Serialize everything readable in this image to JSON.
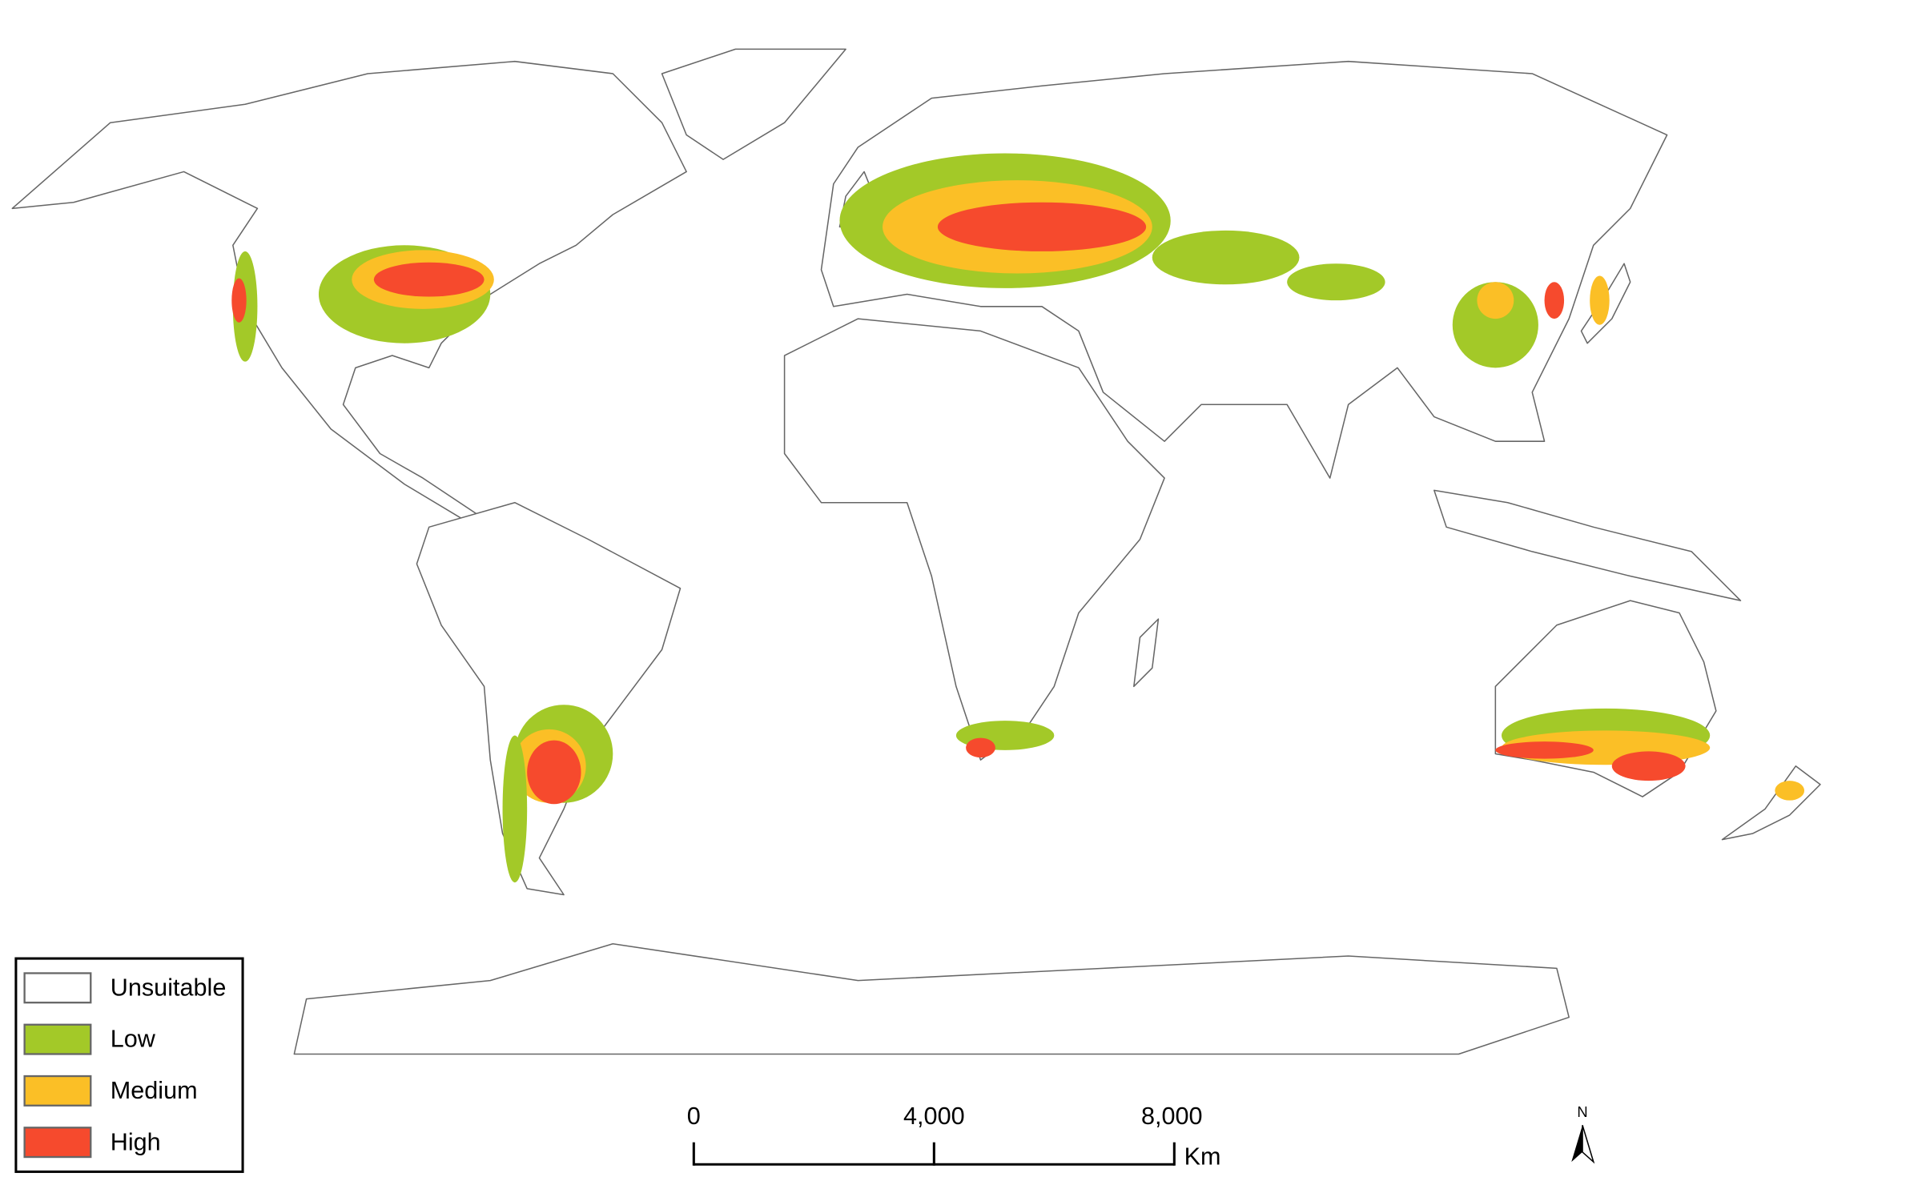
{
  "legend": {
    "items": [
      {
        "label": "Unsuitable",
        "color": "#ffffff"
      },
      {
        "label": "Low",
        "color": "#a3c928"
      },
      {
        "label": "Medium",
        "color": "#fbbf26"
      },
      {
        "label": "High",
        "color": "#f64a2d"
      }
    ]
  },
  "scale_bar": {
    "labels": [
      "0",
      "4,000",
      "8,000"
    ],
    "unit": "Km"
  },
  "north_arrow": {
    "label": "N"
  }
}
